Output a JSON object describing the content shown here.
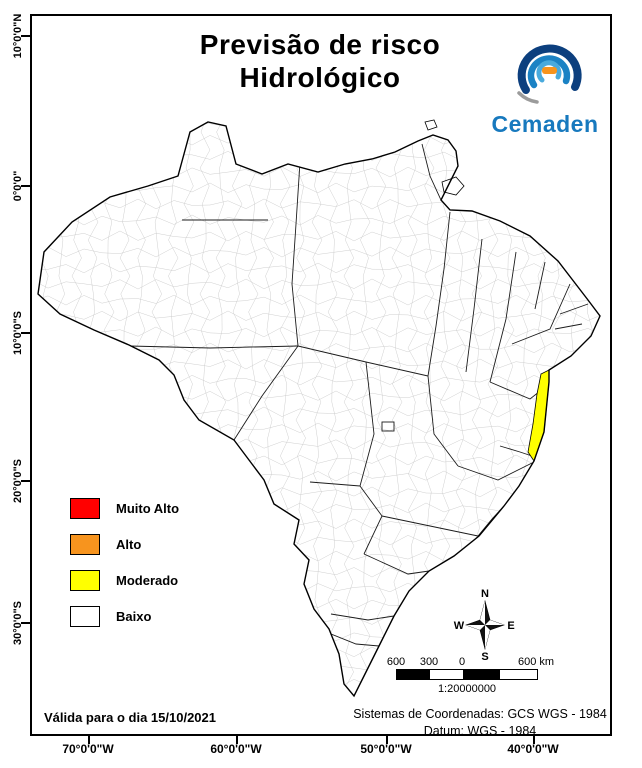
{
  "title": {
    "line1": "Previsão de risco",
    "line2": "Hidrológico"
  },
  "logo": {
    "brand": "Cemaden",
    "brand_color": "#1779be",
    "icon": "cemaden-eye-swirl-logo"
  },
  "legend": {
    "items": [
      {
        "label": "Muito Alto",
        "color": "#ff0000"
      },
      {
        "label": "Alto",
        "color": "#f7941e"
      },
      {
        "label": "Moderado",
        "color": "#ffff00"
      },
      {
        "label": "Baixo",
        "color": "#ffffff"
      }
    ]
  },
  "map": {
    "country": "Brasil",
    "risk_region_level": "Moderado",
    "risk_region_color": "#ffff00",
    "base_fill": "#ffffff"
  },
  "compass": {
    "n": "N",
    "s": "S",
    "e": "E",
    "w": "W"
  },
  "scalebar": {
    "labels": [
      "600",
      "300",
      "0",
      "600 km"
    ],
    "ratio": "1:20000000"
  },
  "footer": {
    "validity": "Válida para o dia 15/10/2021",
    "coord_line1": "Sistemas de Coordenadas: GCS WGS - 1984",
    "coord_line2": "Datum: WGS - 1984"
  },
  "axes": {
    "left": [
      "10°0'0\"N",
      "0°0'0\"",
      "10°0'0\"S",
      "20°0'0\"S",
      "30°0'0\"S"
    ],
    "bottom": [
      "70°0'0\"W",
      "60°0'0\"W",
      "50°0'0\"W",
      "40°0'0\"W"
    ]
  }
}
